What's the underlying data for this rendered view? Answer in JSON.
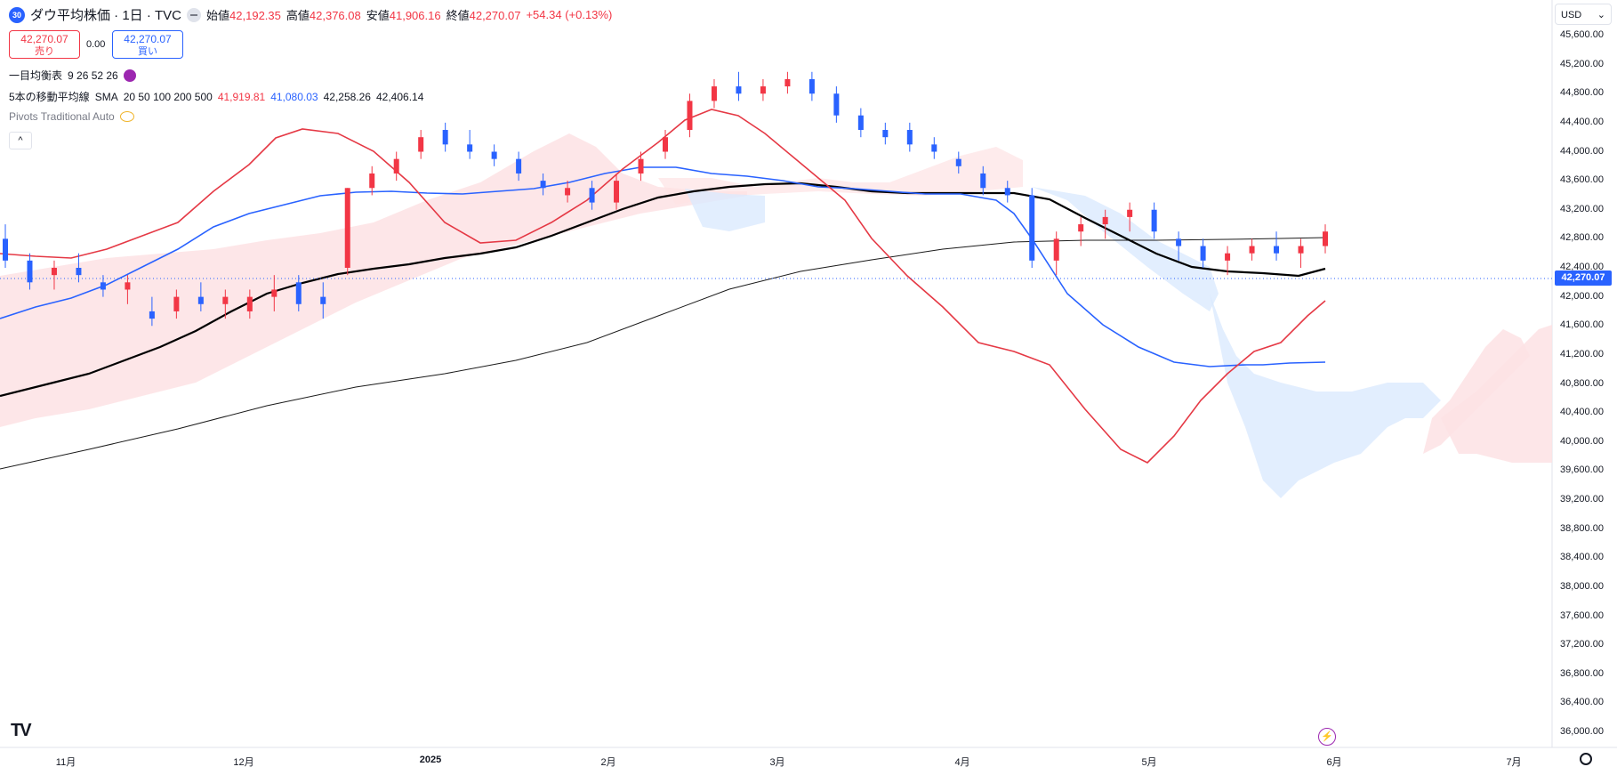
{
  "header": {
    "symbol_badge": "30",
    "title": "ダウ平均株価 · 1日 · TVC",
    "ohlc": [
      {
        "label": "始値",
        "value": "42,192.35"
      },
      {
        "label": "高値",
        "value": "42,376.08"
      },
      {
        "label": "安値",
        "value": "41,906.16"
      },
      {
        "label": "終値",
        "value": "42,270.07"
      }
    ],
    "change": "+54.34 (+0.13%)"
  },
  "trade": {
    "sell_price": "42,270.07",
    "sell_label": "売り",
    "spread": "0.00",
    "buy_price": "42,270.07",
    "buy_label": "買い"
  },
  "indicators": {
    "ichimoku_label": "一目均衡表",
    "ichimoku_params": "9 26 52 26",
    "ma_label": "5本の移動平均線",
    "ma_type": "SMA",
    "ma_params": "20 50 100 200 500",
    "ma_values": [
      "41,919.81",
      "41,080.03",
      "42,258.26",
      "42,406.14"
    ],
    "pivots_label": "Pivots Traditional Auto",
    "collapse_icon": "^"
  },
  "price_scale": {
    "currency": "USD",
    "ticks": [
      "45,600.00",
      "45,200.00",
      "44,800.00",
      "44,400.00",
      "44,000.00",
      "43,600.00",
      "43,200.00",
      "42,800.00",
      "42,400.00",
      "42,000.00",
      "41,600.00",
      "41,200.00",
      "40,800.00",
      "40,400.00",
      "40,000.00",
      "39,600.00",
      "39,200.00",
      "38,800.00",
      "38,400.00",
      "38,000.00",
      "37,600.00",
      "37,200.00",
      "36,800.00",
      "36,400.00",
      "36,000.00"
    ],
    "current_price": "42,270.07"
  },
  "time_axis": {
    "ticks": [
      "11月",
      "12月",
      "2025",
      "2月",
      "3月",
      "4月",
      "5月",
      "6月",
      "7月"
    ]
  },
  "colors": {
    "up": "#f23645",
    "down": "#2962ff",
    "sma20": "#e53945",
    "sma50": "#2962ff",
    "sma100": "#000000",
    "sma200": "#000000",
    "cloud_bull": "#fde2e4",
    "cloud_bear": "#dbeafe"
  },
  "chart_data": {
    "type": "candlestick",
    "ylim": [
      36000,
      45600
    ],
    "candles_approx": [
      [
        42800,
        43000,
        42400,
        42500
      ],
      [
        42500,
        42600,
        42100,
        42200
      ],
      [
        42300,
        42500,
        42100,
        42400
      ],
      [
        42400,
        42600,
        42200,
        42300
      ],
      [
        42200,
        42300,
        42000,
        42100
      ],
      [
        42100,
        42300,
        41900,
        42200
      ],
      [
        41800,
        42000,
        41600,
        41700
      ],
      [
        41800,
        42100,
        41700,
        42000
      ],
      [
        42000,
        42200,
        41800,
        41900
      ],
      [
        41900,
        42100,
        41700,
        42000
      ],
      [
        41800,
        42100,
        41700,
        42000
      ],
      [
        42000,
        42300,
        41800,
        42100
      ],
      [
        42200,
        42300,
        41800,
        41900
      ],
      [
        42000,
        42200,
        41700,
        41900
      ],
      [
        42400,
        43500,
        42300,
        43500
      ],
      [
        43500,
        43800,
        43400,
        43700
      ],
      [
        43700,
        44000,
        43600,
        43900
      ],
      [
        44000,
        44300,
        43900,
        44200
      ],
      [
        44300,
        44400,
        44000,
        44100
      ],
      [
        44100,
        44300,
        43900,
        44000
      ],
      [
        44000,
        44100,
        43800,
        43900
      ],
      [
        43900,
        44000,
        43600,
        43700
      ],
      [
        43600,
        43700,
        43400,
        43500
      ],
      [
        43400,
        43600,
        43300,
        43500
      ],
      [
        43500,
        43600,
        43200,
        43300
      ],
      [
        43300,
        43700,
        43200,
        43600
      ],
      [
        43700,
        44000,
        43600,
        43900
      ],
      [
        44000,
        44300,
        43900,
        44200
      ],
      [
        44300,
        44800,
        44200,
        44700
      ],
      [
        44700,
        45000,
        44600,
        44900
      ],
      [
        44900,
        45100,
        44700,
        44800
      ],
      [
        44800,
        45000,
        44700,
        44900
      ],
      [
        44900,
        45100,
        44800,
        45000
      ],
      [
        45000,
        45100,
        44700,
        44800
      ],
      [
        44800,
        44900,
        44400,
        44500
      ],
      [
        44500,
        44600,
        44200,
        44300
      ],
      [
        44300,
        44400,
        44100,
        44200
      ],
      [
        44300,
        44400,
        44000,
        44100
      ],
      [
        44100,
        44200,
        43900,
        44000
      ],
      [
        43900,
        44000,
        43700,
        43800
      ],
      [
        43700,
        43800,
        43400,
        43500
      ],
      [
        43500,
        43600,
        43300,
        43400
      ],
      [
        43400,
        43500,
        42400,
        42500
      ],
      [
        42500,
        42900,
        42300,
        42800
      ],
      [
        42900,
        43100,
        42700,
        43000
      ],
      [
        43000,
        43200,
        42800,
        43100
      ],
      [
        43100,
        43300,
        42900,
        43200
      ],
      [
        43200,
        43300,
        42800,
        42900
      ],
      [
        42800,
        42900,
        42500,
        42700
      ],
      [
        42700,
        42800,
        42400,
        42500
      ],
      [
        42500,
        42700,
        42300,
        42600
      ],
      [
        42600,
        42800,
        42500,
        42700
      ],
      [
        42700,
        42900,
        42500,
        42600
      ],
      [
        42600,
        42800,
        42400,
        42700
      ],
      [
        42700,
        43000,
        42600,
        42900
      ]
    ]
  }
}
